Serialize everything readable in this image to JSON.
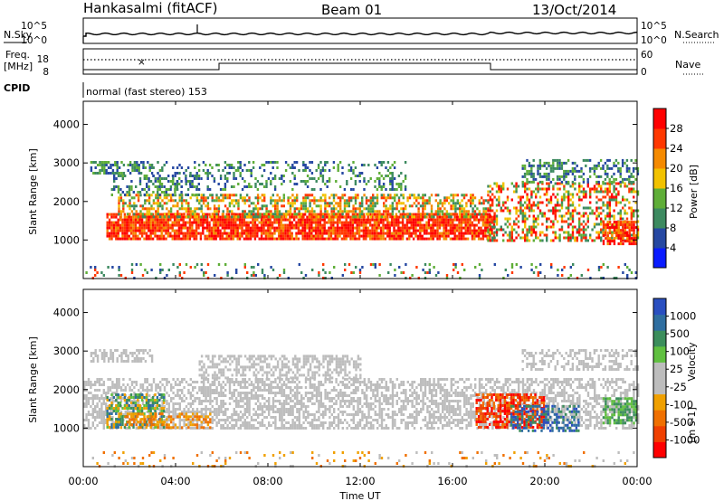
{
  "header": {
    "title": "Hankasalmi (fitACF)",
    "beam": "Beam 01",
    "date": "13/Oct/2014"
  },
  "noise_panel": {
    "left_label": "N.Sky",
    "right_label": "N.Search",
    "left_ticks": [
      "10^5",
      "10^0"
    ],
    "right_ticks": [
      "10^5",
      "10^0"
    ]
  },
  "freq_panel": {
    "left_label_line1": "Freq.",
    "left_label_line2": "[MHz]",
    "right_label": "Nave",
    "left_ticks": [
      "18",
      "8"
    ],
    "right_ticks": [
      "60",
      "0"
    ]
  },
  "cpid": {
    "label": "CPID",
    "text": "normal (fast stereo) 153"
  },
  "chart_data": [
    {
      "type": "heatmap",
      "name": "power",
      "ylabel": "Slant Range [km]",
      "ylim": [
        0,
        4600
      ],
      "yticks": [
        "1000",
        "2000",
        "3000",
        "4000"
      ],
      "colorbar_label": "Power [dB]",
      "colorbar_ticks": [
        "4",
        "8",
        "12",
        "16",
        "20",
        "24",
        "28"
      ],
      "colorbar_range": [
        0,
        32
      ],
      "colors": [
        "#0a1cff",
        "#2648a2",
        "#3d8a60",
        "#5fae38",
        "#f2c200",
        "#f58a00",
        "#ff3800",
        "#ff0000"
      ]
    },
    {
      "type": "heatmap",
      "name": "velocity",
      "ylabel": "Slant Range [km]",
      "ylim": [
        0,
        4600
      ],
      "yticks": [
        "1000",
        "2000",
        "3000",
        "4000"
      ],
      "colorbar_label": "Velocity",
      "colorbar_units": "[m s-1]",
      "colorbar_ticks": [
        "1000",
        "500",
        "100",
        "25",
        "-25",
        "-100",
        "-500",
        "-1000"
      ],
      "colors": [
        "#2a4fc0",
        "#2f6ea0",
        "#3c8e5c",
        "#60c040",
        "#bdbdbd",
        "#bdbdbd",
        "#f0a000",
        "#f07000",
        "#f04000",
        "#ff0000"
      ]
    }
  ],
  "x_axis": {
    "label": "Time UT",
    "ticks": [
      "00:00",
      "04:00",
      "08:00",
      "12:00",
      "16:00",
      "20:00",
      "00:00"
    ]
  }
}
